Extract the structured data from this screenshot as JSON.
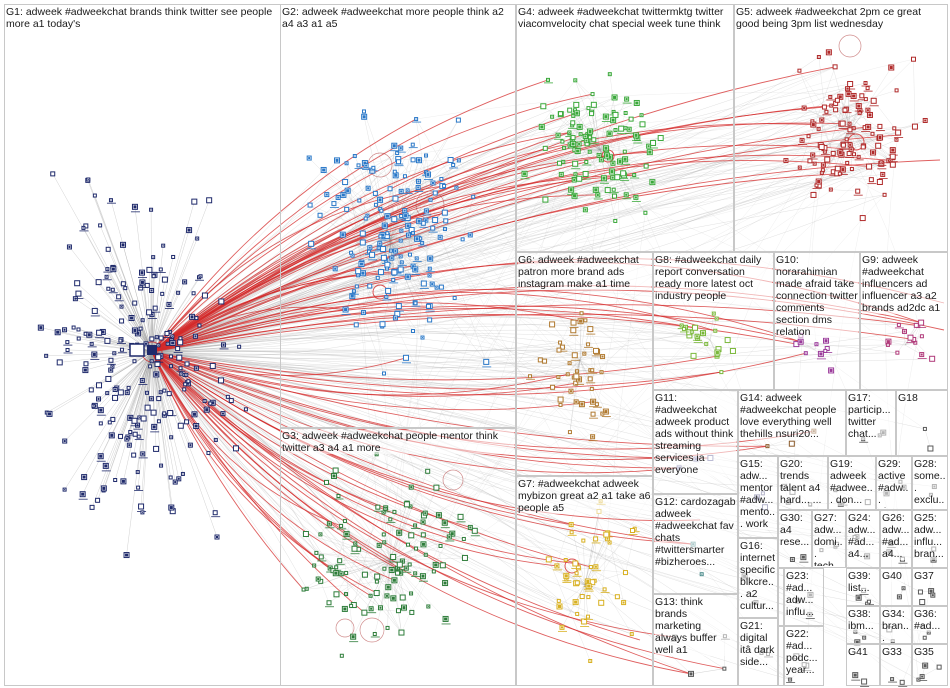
{
  "colors": {
    "background": "#ffffff",
    "border": "#c8c8c8",
    "edge_gray": "#9a9a9a",
    "edge_red": "#d42a2a",
    "text": "#1a1a1a"
  },
  "groups": [
    {
      "id": "G1",
      "label": "G1: adweek #adweekchat brands think twitter see people more a1 today's",
      "color": "#1f2a6b"
    },
    {
      "id": "G2",
      "label": "G2: adweek #adweekchat more people think a2 a4 a3 a1 a5",
      "color": "#2a78c8"
    },
    {
      "id": "G3",
      "label": "G3: adweek #adweekchat people mentor think twitter a3 a4 a1 more",
      "color": "#2e7d3a"
    },
    {
      "id": "G4",
      "label": "G4: adweek #adweekchat twittermktg twitter viacomvelocity chat special week tune think",
      "color": "#3aa83a"
    },
    {
      "id": "G5",
      "label": "G5: adweek #adweekchat 2pm ce great good being 3pm list wednesday",
      "color": "#b02a2a"
    },
    {
      "id": "G6",
      "label": "G6: adweek #adweekchat patron more brand ads instagram make a1 time",
      "color": "#b07a30"
    },
    {
      "id": "G7",
      "label": "G7: #adweekchat adweek mybizon great a2 a1 take a6 people a5",
      "color": "#d8b020"
    },
    {
      "id": "G8",
      "label": "G8: #adweekchat daily report conversation ready more latest oct industry people",
      "color": "#7ab83a"
    },
    {
      "id": "G9",
      "label": "G9: adweek #adweekchat influencers ad influencer a3 a2 brands ad2dc a1",
      "color": "#b03a7a"
    },
    {
      "id": "G10",
      "label": "G10: norarahimian made afraid take connection twitter comments section dms relation",
      "color": "#9a3a9a"
    },
    {
      "id": "G11",
      "label": "G11: #adweekchat adweek product ads without think streaming services ia everyone",
      "color": "#6a6aa0"
    },
    {
      "id": "G12",
      "label": "G12: cardozagab adweek #adweekchat fav chats #twittersmarter #bizheroes...",
      "color": "#4a8a8a"
    },
    {
      "id": "G13",
      "label": "G13: think brands marketing always buffer well a1",
      "color": "#5a5a5a"
    },
    {
      "id": "G14",
      "label": "G14: adweek #adweekchat people love everything well thehills nsuri20...",
      "color": "#8a5a2a"
    },
    {
      "id": "G15",
      "label": "G15: adw... mentor #adw... mento... work",
      "color": "#5a5a8a"
    },
    {
      "id": "G16",
      "label": "G16: internet specific blkcre... a2 cultur...",
      "color": "#5a5a5a"
    },
    {
      "id": "G17",
      "label": "G17: particip... twitter chat...",
      "color": "#5a5a5a"
    },
    {
      "id": "G18",
      "label": "G18",
      "color": "#5a5a5a"
    },
    {
      "id": "G19",
      "label": "G19: adweek #adwee... don...",
      "color": "#5a5a5a"
    },
    {
      "id": "G20",
      "label": "G20: trends talent a4 hard... ...",
      "color": "#5a5a5a"
    },
    {
      "id": "G21",
      "label": "G21: digital itâ dark side...",
      "color": "#5a5a5a"
    },
    {
      "id": "G22",
      "label": "G22: #ad... podc... year...",
      "color": "#5a5a5a"
    },
    {
      "id": "G23",
      "label": "G23: #ad... adw... influ...",
      "color": "#5a5a5a"
    },
    {
      "id": "G24",
      "label": "G24: adw... #ad... a4...",
      "color": "#5a5a5a"
    },
    {
      "id": "G25",
      "label": "G25: adw... influ... bran...",
      "color": "#5a5a5a"
    },
    {
      "id": "G26",
      "label": "G26: adw... #ad... a4...",
      "color": "#5a5a5a"
    },
    {
      "id": "G27",
      "label": "G27: adw... domi... tech...",
      "color": "#5a5a5a"
    },
    {
      "id": "G28",
      "label": "G28: some... exclu... offer...",
      "color": "#5a5a5a"
    },
    {
      "id": "G29",
      "label": "G29: active #adw... #bra...",
      "color": "#5a5a5a"
    },
    {
      "id": "G30",
      "label": "G30: a4 rese...",
      "color": "#5a5a5a"
    },
    {
      "id": "G31",
      "label": "G31",
      "color": "#5a5a5a"
    },
    {
      "id": "G32",
      "label": "G32: list active #twit...",
      "color": "#5a5a5a"
    },
    {
      "id": "G33",
      "label": "G33",
      "color": "#5a5a5a"
    },
    {
      "id": "G34",
      "label": "G34: bran...",
      "color": "#5a5a5a"
    },
    {
      "id": "G35",
      "label": "G35",
      "color": "#5a5a5a"
    },
    {
      "id": "G36",
      "label": "G36: #ad...",
      "color": "#5a5a5a"
    },
    {
      "id": "G37",
      "label": "G37",
      "color": "#5a5a5a"
    },
    {
      "id": "G38",
      "label": "G38: ibm...",
      "color": "#5a5a5a"
    },
    {
      "id": "G39",
      "label": "G39: list...",
      "color": "#5a5a5a"
    },
    {
      "id": "G40",
      "label": "G40",
      "color": "#5a5a5a"
    },
    {
      "id": "G41",
      "label": "G41",
      "color": "#5a5a5a"
    }
  ]
}
